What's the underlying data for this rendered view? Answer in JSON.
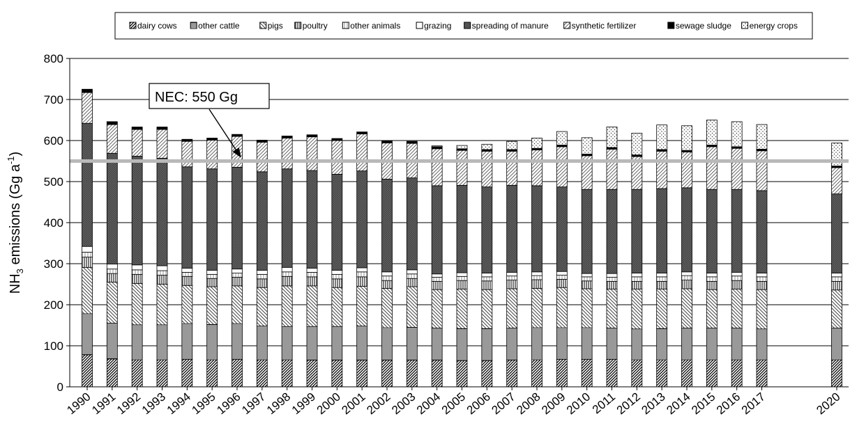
{
  "chart_data": {
    "type": "bar",
    "stacked": true,
    "title": "",
    "ylabel_parts": [
      "NH",
      "3",
      " emissions (Gg a",
      "-1",
      ")"
    ],
    "ylim": [
      0,
      800
    ],
    "yticks": [
      0,
      100,
      200,
      300,
      400,
      500,
      600,
      700,
      800
    ],
    "grid": true,
    "legend_position": "top",
    "categories": [
      "1990",
      "1991",
      "1992",
      "1993",
      "1994",
      "1995",
      "1996",
      "1997",
      "1998",
      "1999",
      "2000",
      "2001",
      "2002",
      "2003",
      "2004",
      "2005",
      "2006",
      "2007",
      "2008",
      "2009",
      "2010",
      "2011",
      "2012",
      "2013",
      "2014",
      "2015",
      "2016",
      "2017",
      "2020"
    ],
    "series": [
      {
        "name": "dairy cows",
        "pattern": "diag-dense",
        "values": [
          78,
          68,
          66,
          66,
          67,
          66,
          67,
          66,
          66,
          65,
          65,
          65,
          65,
          65,
          65,
          64,
          64,
          65,
          66,
          67,
          67,
          67,
          66,
          66,
          66,
          66,
          66,
          66,
          66
        ]
      },
      {
        "name": "other cattle",
        "pattern": "horiz",
        "values": [
          100,
          87,
          85,
          85,
          87,
          86,
          87,
          82,
          81,
          82,
          82,
          83,
          79,
          80,
          78,
          78,
          78,
          78,
          78,
          77,
          77,
          76,
          75,
          76,
          77,
          77,
          77,
          75,
          77
        ]
      },
      {
        "name": "pigs",
        "pattern": "cross-diag",
        "values": [
          113,
          100,
          101,
          99,
          93,
          92,
          92,
          94,
          99,
          99,
          95,
          97,
          96,
          99,
          94,
          96,
          95,
          96,
          96,
          98,
          95,
          95,
          97,
          96,
          96,
          94,
          95,
          96,
          93
        ]
      },
      {
        "name": "poultry",
        "pattern": "vert",
        "values": [
          25,
          21,
          22,
          22,
          22,
          20,
          21,
          21,
          23,
          22,
          21,
          23,
          19,
          20,
          20,
          21,
          21,
          21,
          21,
          20,
          19,
          19,
          19,
          19,
          21,
          20,
          21,
          20,
          21
        ]
      },
      {
        "name": "other animals",
        "pattern": "light-vert",
        "values": [
          12,
          11,
          11,
          11,
          10,
          10,
          10,
          11,
          11,
          11,
          11,
          12,
          11,
          11,
          10,
          10,
          10,
          10,
          10,
          10,
          10,
          10,
          11,
          11,
          11,
          11,
          11,
          11,
          11
        ]
      },
      {
        "name": "grazing",
        "pattern": "blank",
        "values": [
          14,
          12,
          12,
          12,
          10,
          10,
          10,
          10,
          11,
          10,
          10,
          10,
          10,
          10,
          8,
          9,
          9,
          9,
          9,
          9,
          8,
          9,
          9,
          9,
          9,
          9,
          9,
          9,
          9
        ]
      },
      {
        "name": "spreading of manure",
        "pattern": "dark",
        "values": [
          300,
          270,
          265,
          262,
          247,
          247,
          248,
          240,
          240,
          238,
          234,
          236,
          226,
          224,
          215,
          213,
          210,
          212,
          210,
          206,
          205,
          205,
          204,
          206,
          205,
          204,
          202,
          201,
          193
        ]
      },
      {
        "name": "synthetic fertilizer",
        "pattern": "diag-light",
        "values": [
          75,
          70,
          65,
          70,
          62,
          70,
          75,
          72,
          75,
          82,
          82,
          90,
          88,
          84,
          90,
          85,
          87,
          83,
          87,
          98,
          82,
          98,
          80,
          91,
          87,
          104,
          100,
          97,
          64
        ]
      },
      {
        "name": "sewage sludge",
        "pattern": "solid",
        "values": [
          8,
          7,
          6,
          6,
          5,
          5,
          5,
          5,
          5,
          5,
          5,
          5,
          5,
          5,
          5,
          4,
          4,
          4,
          4,
          4,
          4,
          4,
          4,
          4,
          4,
          4,
          4,
          4,
          4
        ]
      },
      {
        "name": "energy crops",
        "pattern": "dots",
        "values": [
          0,
          0,
          0,
          0,
          0,
          0,
          0,
          0,
          0,
          0,
          0,
          0,
          0,
          0,
          2,
          8,
          13,
          20,
          25,
          33,
          40,
          50,
          53,
          60,
          60,
          61,
          61,
          60,
          56
        ]
      }
    ],
    "annotations": [
      {
        "text": "NEC: 550 Gg",
        "value": 550
      }
    ]
  }
}
